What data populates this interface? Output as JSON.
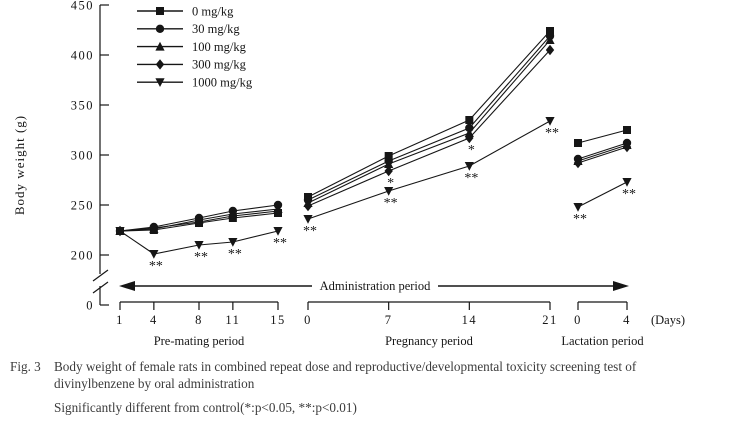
{
  "figure": {
    "fig_label": "Fig. 3",
    "caption_line1": "Body weight of female rats in combined repeat dose and reproductive/developmental toxicity screening test of",
    "caption_line2": "divinylbenzene by oral administration",
    "caption_note": "Significantly different from control(*:p<0.05, **:p<0.01)"
  },
  "chart_data": {
    "type": "line",
    "ylabel": "Body weight (g)",
    "xlabel": "(Days)",
    "title": "",
    "ink_color": "#161616",
    "background": "#ffffff",
    "grid": false,
    "axis_break": true,
    "ylim": [
      0,
      450
    ],
    "ylim_display": [
      200,
      450
    ],
    "y_ticks": [
      450,
      400,
      350,
      300,
      250,
      200,
      0
    ],
    "legend_position": "top-left",
    "admin_arrow_label": "Administration period",
    "periods": [
      {
        "name": "Pre-mating period",
        "days": [
          1,
          4,
          8,
          11,
          15
        ]
      },
      {
        "name": "Pregnancy period",
        "days": [
          0,
          7,
          14,
          21
        ]
      },
      {
        "name": "Lactation period",
        "days": [
          0,
          4
        ]
      }
    ],
    "series": [
      {
        "name": "0 mg/kg",
        "marker": "square",
        "values": [
          [
            224,
            225,
            232,
            237,
            242
          ],
          [
            258,
            299,
            335,
            424
          ],
          [
            312,
            325
          ]
        ],
        "sig": [
          [
            "",
            "",
            "",
            "",
            ""
          ],
          [
            "",
            "",
            "",
            ""
          ],
          [
            "",
            ""
          ]
        ]
      },
      {
        "name": "30 mg/kg",
        "marker": "circle",
        "values": [
          [
            224,
            228,
            237,
            244,
            250
          ],
          [
            255,
            294,
            327,
            419
          ],
          [
            296,
            312
          ]
        ],
        "sig": [
          [
            "",
            "",
            "",
            "",
            ""
          ],
          [
            "",
            "",
            "",
            ""
          ],
          [
            "",
            ""
          ]
        ]
      },
      {
        "name": "100 mg/kg",
        "marker": "triangle-up",
        "values": [
          [
            224,
            226,
            235,
            241,
            246
          ],
          [
            252,
            291,
            322,
            415
          ],
          [
            294,
            310
          ]
        ],
        "sig": [
          [
            "",
            "",
            "",
            "",
            ""
          ],
          [
            "",
            "",
            "",
            ""
          ],
          [
            "",
            ""
          ]
        ]
      },
      {
        "name": "300 mg/kg",
        "marker": "diamond",
        "values": [
          [
            224,
            227,
            233,
            239,
            244
          ],
          [
            249,
            284,
            317,
            405
          ],
          [
            292,
            308
          ]
        ],
        "sig": [
          [
            "",
            "",
            "",
            "",
            ""
          ],
          [
            "",
            "*",
            "*",
            ""
          ],
          [
            "",
            ""
          ]
        ]
      },
      {
        "name": "1000 mg/kg",
        "marker": "triangle-down",
        "values": [
          [
            224,
            201,
            210,
            213,
            224
          ],
          [
            236,
            264,
            289,
            334
          ],
          [
            248,
            273
          ]
        ],
        "sig": [
          [
            "",
            "**",
            "**",
            "**",
            "**"
          ],
          [
            "**",
            "**",
            "**",
            "**"
          ],
          [
            "**",
            "**"
          ]
        ]
      }
    ]
  }
}
